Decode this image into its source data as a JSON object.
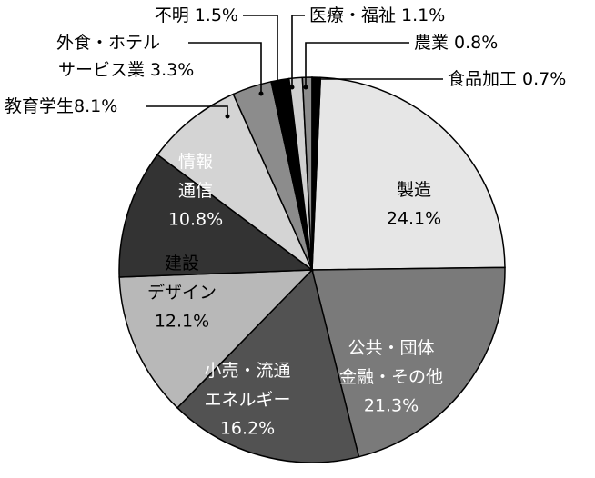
{
  "chart_data": {
    "type": "pie",
    "categories": [
      "製造",
      "公共・団体\n金融・その他",
      "小売・流通\nエネルギー",
      "建設\nデザイン",
      "情報\n通信",
      "教育学生",
      "外食・ホテル\nサービス業",
      "不明",
      "医療・福祉",
      "農業",
      "食品加工"
    ],
    "values": [
      24.1,
      21.3,
      16.2,
      12.1,
      10.8,
      8.1,
      3.3,
      1.5,
      1.1,
      0.8,
      0.7
    ],
    "value_labels": [
      "24.1%",
      "21.3%",
      "16.2%",
      "12.1%",
      "10.8%",
      "8.1%",
      "3.3%",
      "1.5%",
      "1.1%",
      "0.8%",
      "0.7%"
    ],
    "colors": [
      "#e6e6e6",
      "#7a7a7a",
      "#525252",
      "#b8b8b8",
      "#333333",
      "#d4d4d4",
      "#8c8c8c",
      "#000000",
      "#d0d0d0",
      "#8c8c8c",
      "#000000"
    ]
  }
}
